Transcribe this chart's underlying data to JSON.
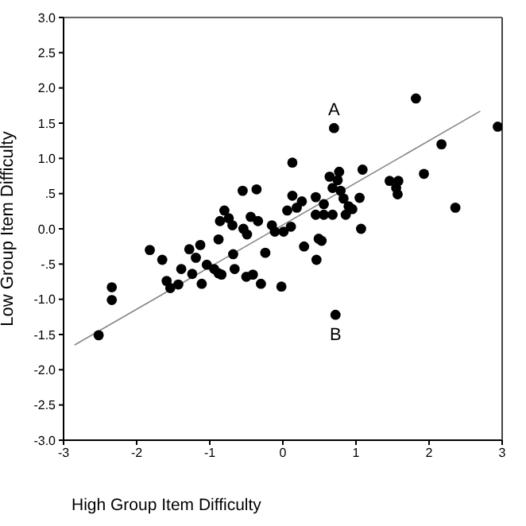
{
  "chart_data": {
    "type": "scatter",
    "xlabel": "High Group Item Difficulty",
    "ylabel": "Low Group Item Difficulty",
    "xlim": [
      -3,
      3
    ],
    "xticks": [
      -3,
      -2,
      -1,
      0,
      1,
      2,
      3
    ],
    "ylim": [
      -3,
      3
    ],
    "yticks": [
      {
        "value": -3,
        "label": "-3.0"
      },
      {
        "value": -2.5,
        "label": "-2.5"
      },
      {
        "value": -2,
        "label": "-2.0"
      },
      {
        "value": -1.5,
        "label": "-1.5"
      },
      {
        "value": -1,
        "label": "-1.0"
      },
      {
        "value": -0.5,
        "label": "-.5"
      },
      {
        "value": 0,
        "label": "0.0"
      },
      {
        "value": 0.5,
        "label": ".5"
      },
      {
        "value": 1,
        "label": "1.0"
      },
      {
        "value": 1.5,
        "label": "1.5"
      },
      {
        "value": 2,
        "label": "2.0"
      },
      {
        "value": 2.5,
        "label": "2.5"
      },
      {
        "value": 3,
        "label": "3.0"
      }
    ],
    "annotations": [
      {
        "text": "A",
        "x": 0.7,
        "y": 1.43
      },
      {
        "text": "B",
        "x": 0.72,
        "y": -1.22
      }
    ],
    "series": [
      {
        "color": "#000000",
        "marker": "circle",
        "x": [
          -2.52,
          -2.34,
          -2.34,
          -1.82,
          -1.65,
          -1.59,
          -1.54,
          -1.43,
          -1.39,
          -1.28,
          -1.24,
          -1.19,
          -1.13,
          -1.11,
          -1.04,
          -0.94,
          -0.88,
          -0.84,
          -0.88,
          -0.86,
          -0.8,
          -0.74,
          -0.69,
          -0.68,
          -0.66,
          -0.55,
          -0.54,
          -0.49,
          -0.5,
          -0.44,
          -0.41,
          -0.36,
          -0.34,
          -0.3,
          -0.24,
          -0.15,
          -0.11,
          -0.02,
          0.01,
          0.06,
          0.11,
          0.13,
          0.13,
          0.19,
          0.26,
          0.29,
          0.45,
          0.45,
          0.46,
          0.49,
          0.53,
          0.56,
          0.56,
          0.68,
          0.64,
          0.68,
          0.7,
          0.72,
          0.75,
          0.79,
          0.83,
          0.86,
          0.9,
          0.95,
          0.77,
          1.07,
          1.09,
          1.05,
          1.46,
          1.55,
          1.58,
          1.57,
          1.82,
          1.93,
          2.17,
          2.36,
          2.94
        ],
        "values": [
          -1.51,
          -0.83,
          -1.01,
          -0.3,
          -0.44,
          -0.74,
          -0.84,
          -0.79,
          -0.57,
          -0.29,
          -0.64,
          -0.41,
          -0.23,
          -0.78,
          -0.51,
          -0.57,
          -0.63,
          -0.65,
          -0.15,
          0.11,
          0.26,
          0.15,
          0.05,
          -0.36,
          -0.57,
          0.54,
          0,
          -0.08,
          -0.68,
          0.17,
          -0.65,
          0.56,
          0.11,
          -0.78,
          -0.34,
          0.05,
          -0.04,
          -0.82,
          -0.04,
          0.26,
          0.03,
          0.94,
          0.47,
          0.3,
          0.39,
          -0.25,
          0.45,
          0.2,
          -0.44,
          -0.14,
          -0.17,
          0.35,
          0.2,
          0.2,
          0.74,
          0.58,
          1.43,
          -1.22,
          0.69,
          0.54,
          0.43,
          0.2,
          0.32,
          0.28,
          0.81,
          0,
          0.84,
          0.44,
          0.68,
          0.58,
          0.68,
          0.49,
          1.85,
          0.78,
          1.2,
          0.3,
          1.45
        ]
      },
      {
        "type": "line",
        "color": "#888888",
        "x": [
          -2.85,
          2.7
        ],
        "values": [
          -1.65,
          1.67
        ]
      }
    ]
  }
}
